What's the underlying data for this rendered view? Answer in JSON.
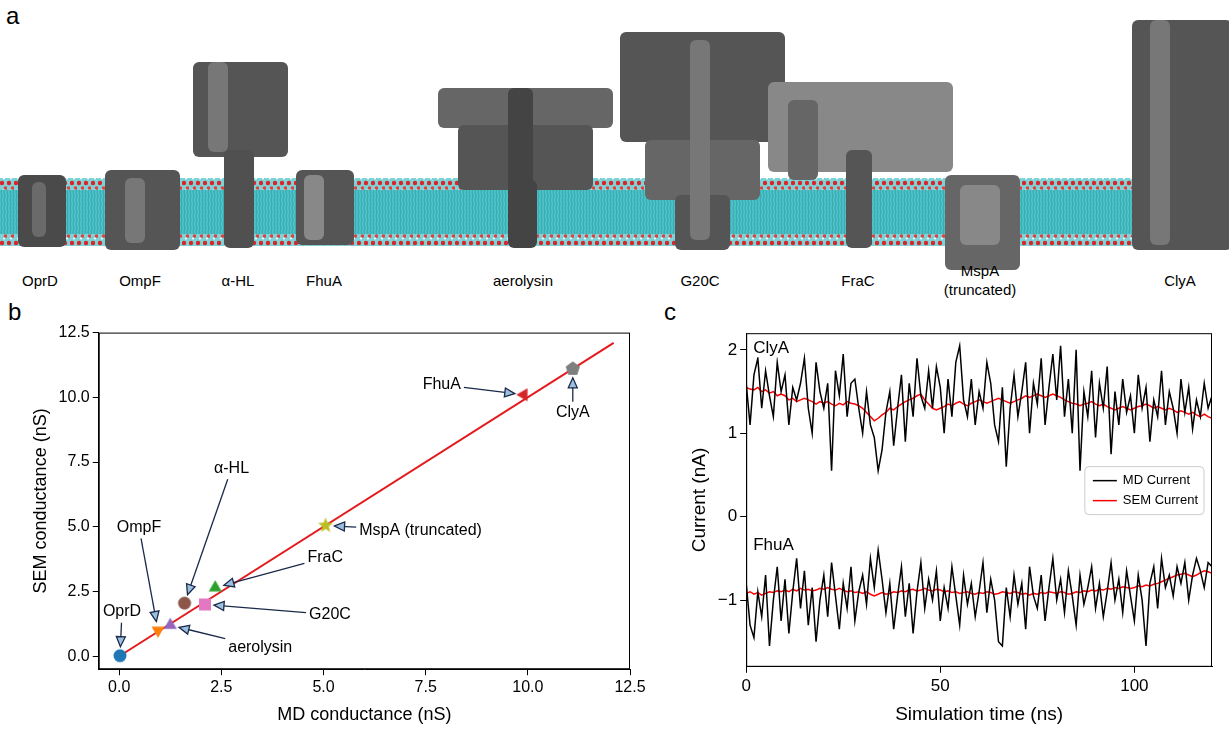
{
  "diagram": {
    "panel_label": "a",
    "labels": [
      "OprD",
      "OmpF",
      "α-HL",
      "FhuA",
      "aerolysin",
      "G20C",
      "FraC",
      "MspA (truncated)",
      "ClyA"
    ]
  },
  "chart_data": [
    {
      "panel_label": "b",
      "type": "scatter",
      "x_label": "MD conductance (nS)",
      "y_label": "SEM conductance (nS)",
      "xlim": [
        -0.5,
        12.5
      ],
      "ylim": [
        -0.5,
        12.5
      ],
      "xticks": [
        {
          "value": 0,
          "label": "0.0"
        },
        2.5,
        {
          "value": 5,
          "label": "5.0"
        },
        7.5,
        {
          "value": 10,
          "label": "10.0"
        },
        12.5
      ],
      "yticks": [
        {
          "value": 0,
          "label": "0.0"
        },
        2.5,
        {
          "value": 5,
          "label": "5.0"
        },
        7.5,
        {
          "value": 10,
          "label": "10.0"
        },
        12.5
      ],
      "grid": false,
      "series": [
        {
          "name": "OprD",
          "color": "#1f77b4",
          "marker": "circle",
          "x": [
            0.02
          ],
          "values": [
            0.02
          ]
        },
        {
          "name": "OmpF",
          "color": "#ff7f0e",
          "marker": "triangle_down",
          "x": [
            0.95
          ],
          "values": [
            1.0
          ]
        },
        {
          "name": "α-HL",
          "color": "#8c564b",
          "marker": "circle",
          "x": [
            1.6
          ],
          "values": [
            2.05
          ]
        },
        {
          "name": "FhuA",
          "color": "#d62728",
          "marker": "triangle_left",
          "x": [
            9.9
          ],
          "values": [
            10.1
          ]
        },
        {
          "name": "aerolysin",
          "color": "#9467bd",
          "marker": "triangle_up",
          "x": [
            1.25
          ],
          "values": [
            1.2
          ]
        },
        {
          "name": "G20C",
          "color": "#e377c2",
          "marker": "square",
          "x": [
            2.1
          ],
          "values": [
            2.0
          ]
        },
        {
          "name": "FraC",
          "color": "#2ca02c",
          "marker": "triangle_up",
          "x": [
            2.35
          ],
          "values": [
            2.65
          ]
        },
        {
          "name": "MspA (truncated)",
          "color": "#bcbd22",
          "marker": "star",
          "x": [
            5.05
          ],
          "values": [
            5.05
          ]
        },
        {
          "name": "ClyA",
          "color": "#7f7f7f",
          "marker": "pentagon",
          "x": [
            11.1
          ],
          "values": [
            11.1
          ]
        },
        {
          "type": "line",
          "color": "#e41a1c",
          "line_style": "solid",
          "x": [
            0,
            12.1
          ],
          "values": [
            0,
            12.1
          ]
        }
      ]
    },
    {
      "panel_label": "c",
      "type": "line",
      "x_label": "Simulation time (ns)",
      "y_label": "Current (nA)",
      "xlim": [
        0,
        120
      ],
      "ylim": [
        -1.8,
        2.2
      ],
      "xticks": [
        0,
        50,
        100
      ],
      "yticks": [
        {
          "value": -1,
          "label": "−1"
        },
        0,
        1,
        2
      ],
      "grid": false,
      "legend": "right",
      "x": [
        0,
        1,
        2,
        3,
        4,
        5,
        6,
        7,
        8,
        9,
        10,
        11,
        12,
        13,
        14,
        15,
        16,
        17,
        18,
        19,
        20,
        21,
        22,
        23,
        24,
        25,
        26,
        27,
        28,
        29,
        30,
        31,
        32,
        33,
        34,
        35,
        36,
        37,
        38,
        39,
        40,
        41,
        42,
        43,
        44,
        45,
        46,
        47,
        48,
        49,
        50,
        51,
        52,
        53,
        54,
        55,
        56,
        57,
        58,
        59,
        60,
        61,
        62,
        63,
        64,
        65,
        66,
        67,
        68,
        69,
        70,
        71,
        72,
        73,
        74,
        75,
        76,
        77,
        78,
        79,
        80,
        81,
        82,
        83,
        84,
        85,
        86,
        87,
        88,
        89,
        90,
        91,
        92,
        93,
        94,
        95,
        96,
        97,
        98,
        99,
        100,
        101,
        102,
        103,
        104,
        105,
        106,
        107,
        108,
        109,
        110,
        111,
        112,
        113,
        114,
        115,
        116,
        117,
        118,
        119,
        120
      ],
      "series": [
        {
          "name": "MD Current",
          "group": "ClyA",
          "color": "#000000",
          "values": [
            1.6,
            1.1,
            1.7,
            1.9,
            1.3,
            1.75,
            1.45,
            1.2,
            1.85,
            1.5,
            1.7,
            1.1,
            1.55,
            1.4,
            1.6,
            1.9,
            1.3,
            1.0,
            1.85,
            1.5,
            1.3,
            1.6,
            0.55,
            1.75,
            1.45,
            1.95,
            1.2,
            1.6,
            1.65,
            1.3,
            1.0,
            1.5,
            1.1,
            0.95,
            0.55,
            0.8,
            1.25,
            1.5,
            0.85,
            1.3,
            1.7,
            0.9,
            1.6,
            1.2,
            1.9,
            1.45,
            1.3,
            1.75,
            1.3,
            1.8,
            1.55,
            1.0,
            1.65,
            1.2,
            1.85,
            2.05,
            1.4,
            1.2,
            1.65,
            1.1,
            1.5,
            1.3,
            1.85,
            1.6,
            1.1,
            0.9,
            1.55,
            0.6,
            1.3,
            1.7,
            1.2,
            1.5,
            1.85,
            1.0,
            1.6,
            1.35,
            1.9,
            1.1,
            1.55,
            1.95,
            1.4,
            2.05,
            1.2,
            1.65,
            1.0,
            2.0,
            0.55,
            1.5,
            1.2,
            1.75,
            0.95,
            1.6,
            1.3,
            1.8,
            0.75,
            1.5,
            1.1,
            1.65,
            1.25,
            1.45,
            1.0,
            1.7,
            1.3,
            1.55,
            0.9,
            1.4,
            1.2,
            1.75,
            1.1,
            1.5,
            1.3,
            1.0,
            1.65,
            1.25,
            1.55,
            1.05,
            1.4,
            1.2,
            1.6,
            1.3,
            1.45
          ]
        },
        {
          "name": "SEM Current",
          "group": "ClyA",
          "color": "#ff0000",
          "values": [
            1.55,
            1.53,
            1.52,
            1.55,
            1.5,
            1.52,
            1.48,
            1.5,
            1.45,
            1.47,
            1.45,
            1.4,
            1.42,
            1.38,
            1.4,
            1.42,
            1.4,
            1.38,
            1.35,
            1.38,
            1.36,
            1.38,
            1.35,
            1.33,
            1.36,
            1.34,
            1.38,
            1.36,
            1.35,
            1.33,
            1.3,
            1.25,
            1.2,
            1.15,
            1.18,
            1.22,
            1.25,
            1.3,
            1.28,
            1.32,
            1.35,
            1.38,
            1.4,
            1.42,
            1.45,
            1.47,
            1.4,
            1.35,
            1.3,
            1.28,
            1.3,
            1.32,
            1.35,
            1.33,
            1.36,
            1.38,
            1.35,
            1.33,
            1.36,
            1.38,
            1.4,
            1.38,
            1.36,
            1.38,
            1.4,
            1.42,
            1.4,
            1.38,
            1.36,
            1.38,
            1.4,
            1.42,
            1.45,
            1.43,
            1.45,
            1.47,
            1.45,
            1.43,
            1.45,
            1.47,
            1.45,
            1.43,
            1.4,
            1.38,
            1.36,
            1.35,
            1.33,
            1.35,
            1.36,
            1.38,
            1.35,
            1.33,
            1.35,
            1.32,
            1.3,
            1.28,
            1.3,
            1.32,
            1.3,
            1.28,
            1.3,
            1.32,
            1.33,
            1.35,
            1.33,
            1.3,
            1.32,
            1.3,
            1.28,
            1.3,
            1.28,
            1.25,
            1.27,
            1.25,
            1.23,
            1.25,
            1.22,
            1.2,
            1.23,
            1.2,
            1.18
          ]
        },
        {
          "name": "MD Current",
          "group": "FhuA",
          "color": "#000000",
          "values": [
            -0.8,
            -1.3,
            -1.45,
            -0.9,
            -1.2,
            -0.7,
            -1.55,
            -1.0,
            -0.6,
            -1.25,
            -0.75,
            -1.4,
            -0.9,
            -0.5,
            -1.1,
            -0.65,
            -1.3,
            -0.85,
            -1.5,
            -1.0,
            -0.7,
            -1.2,
            -0.55,
            -0.95,
            -1.35,
            -0.8,
            -1.1,
            -0.6,
            -1.25,
            -0.9,
            -0.7,
            -1.05,
            -0.5,
            -0.85,
            -0.4,
            -0.75,
            -1.15,
            -0.8,
            -1.35,
            -0.95,
            -0.6,
            -1.2,
            -0.8,
            -1.4,
            -0.9,
            -0.55,
            -1.1,
            -0.75,
            -1.0,
            -0.65,
            -1.25,
            -0.85,
            -1.1,
            -0.6,
            -0.95,
            -1.3,
            -0.7,
            -1.05,
            -0.8,
            -1.2,
            -0.9,
            -0.55,
            -1.15,
            -0.75,
            -1.0,
            -1.5,
            -1.55,
            -0.85,
            -1.2,
            -0.7,
            -1.05,
            -0.8,
            -1.35,
            -0.6,
            -0.95,
            -1.1,
            -0.7,
            -1.25,
            -0.85,
            -0.5,
            -1.0,
            -0.75,
            -1.15,
            -0.65,
            -0.95,
            -1.3,
            -0.7,
            -1.05,
            -0.85,
            -0.6,
            -1.1,
            -0.8,
            -1.2,
            -0.9,
            -0.55,
            -1.0,
            -0.75,
            -1.15,
            -0.65,
            -0.95,
            -1.25,
            -0.7,
            -1.0,
            -1.55,
            -0.8,
            -0.6,
            -1.1,
            -0.5,
            -0.85,
            -0.7,
            -0.95,
            -0.6,
            -0.8,
            -0.55,
            -1.0,
            -0.7,
            -0.5,
            -0.65,
            -0.85,
            -0.55,
            -0.6
          ]
        },
        {
          "name": "SEM Current",
          "group": "FhuA",
          "color": "#ff0000",
          "values": [
            -0.92,
            -0.9,
            -0.93,
            -0.91,
            -0.94,
            -0.92,
            -0.9,
            -0.91,
            -0.89,
            -0.9,
            -0.88,
            -0.9,
            -0.87,
            -0.89,
            -0.86,
            -0.88,
            -0.87,
            -0.89,
            -0.88,
            -0.86,
            -0.87,
            -0.85,
            -0.87,
            -0.88,
            -0.86,
            -0.88,
            -0.9,
            -0.89,
            -0.91,
            -0.9,
            -0.92,
            -0.9,
            -0.93,
            -0.95,
            -0.93,
            -0.91,
            -0.93,
            -0.92,
            -0.9,
            -0.91,
            -0.89,
            -0.9,
            -0.88,
            -0.87,
            -0.89,
            -0.88,
            -0.86,
            -0.88,
            -0.89,
            -0.87,
            -0.88,
            -0.9,
            -0.89,
            -0.91,
            -0.9,
            -0.92,
            -0.91,
            -0.9,
            -0.92,
            -0.93,
            -0.91,
            -0.92,
            -0.9,
            -0.91,
            -0.93,
            -0.92,
            -0.9,
            -0.91,
            -0.92,
            -0.9,
            -0.91,
            -0.93,
            -0.92,
            -0.94,
            -0.92,
            -0.93,
            -0.91,
            -0.92,
            -0.9,
            -0.91,
            -0.92,
            -0.9,
            -0.91,
            -0.93,
            -0.92,
            -0.9,
            -0.91,
            -0.89,
            -0.9,
            -0.88,
            -0.89,
            -0.87,
            -0.88,
            -0.86,
            -0.87,
            -0.85,
            -0.86,
            -0.84,
            -0.85,
            -0.86,
            -0.85,
            -0.83,
            -0.84,
            -0.82,
            -0.83,
            -0.81,
            -0.8,
            -0.78,
            -0.76,
            -0.74,
            -0.72,
            -0.7,
            -0.69,
            -0.68,
            -0.7,
            -0.72,
            -0.7,
            -0.67,
            -0.65,
            -0.66,
            -0.68
          ]
        }
      ]
    }
  ]
}
